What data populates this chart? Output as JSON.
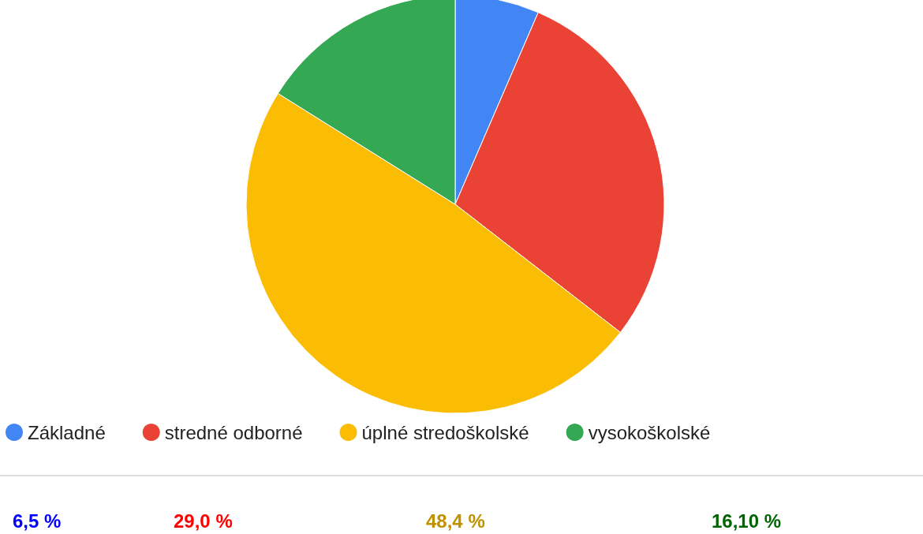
{
  "chart_data": {
    "type": "pie",
    "categories": [
      "Základné",
      "stredné odborné",
      "úplné stredoškolské",
      "vysokoškolské"
    ],
    "values": [
      6.5,
      29.0,
      48.4,
      16.1
    ],
    "colors": [
      "#4285f4",
      "#ea4335",
      "#fbbc04",
      "#34a853"
    ],
    "annotations": [
      "6,5 %",
      "29,0 %",
      "48,4 %",
      "16,10 %"
    ],
    "legend": "bottom"
  }
}
